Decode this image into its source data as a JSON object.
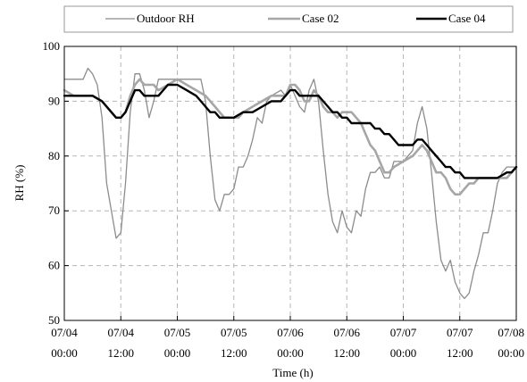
{
  "chart_data": {
    "type": "line",
    "xlabel": "Time (h)",
    "ylabel": "RH (%)",
    "xlim": [
      0,
      96
    ],
    "ylim": [
      50,
      100
    ],
    "yticks": [
      50,
      60,
      70,
      80,
      90,
      100
    ],
    "xticks": [
      {
        "x": 0,
        "date": "07/04",
        "time": "00:00"
      },
      {
        "x": 12,
        "date": "07/04",
        "time": "12:00"
      },
      {
        "x": 24,
        "date": "07/05",
        "time": "00:00"
      },
      {
        "x": 36,
        "date": "07/05",
        "time": "12:00"
      },
      {
        "x": 48,
        "date": "07/06",
        "time": "00:00"
      },
      {
        "x": 60,
        "date": "07/06",
        "time": "12:00"
      },
      {
        "x": 72,
        "date": "07/07",
        "time": "00:00"
      },
      {
        "x": 84,
        "date": "07/07",
        "time": "12:00"
      },
      {
        "x": 96,
        "date": "07/08",
        "time": "00:00"
      }
    ],
    "grid": true,
    "legend": "top",
    "series": [
      {
        "name": "Outdoor RH",
        "color": "#8c8c8c",
        "style": "thin",
        "points": [
          [
            0,
            94
          ],
          [
            2,
            94
          ],
          [
            4,
            94
          ],
          [
            5,
            96
          ],
          [
            6,
            95
          ],
          [
            7,
            93
          ],
          [
            8,
            87
          ],
          [
            9,
            75
          ],
          [
            10,
            70
          ],
          [
            11,
            65
          ],
          [
            12,
            66
          ],
          [
            13,
            75
          ],
          [
            14,
            88
          ],
          [
            15,
            95
          ],
          [
            16,
            95
          ],
          [
            17,
            92
          ],
          [
            18,
            87
          ],
          [
            19,
            90
          ],
          [
            20,
            94
          ],
          [
            22,
            94
          ],
          [
            24,
            94
          ],
          [
            26,
            94
          ],
          [
            28,
            94
          ],
          [
            29,
            94
          ],
          [
            30,
            90
          ],
          [
            31,
            80
          ],
          [
            32,
            72
          ],
          [
            33,
            70
          ],
          [
            34,
            73
          ],
          [
            35,
            73
          ],
          [
            36,
            74
          ],
          [
            37,
            78
          ],
          [
            38,
            78
          ],
          [
            39,
            80
          ],
          [
            40,
            83
          ],
          [
            41,
            87
          ],
          [
            42,
            86
          ],
          [
            43,
            90
          ],
          [
            44,
            91
          ],
          [
            46,
            92
          ],
          [
            47,
            91
          ],
          [
            48,
            93
          ],
          [
            49,
            91
          ],
          [
            50,
            89
          ],
          [
            51,
            88
          ],
          [
            52,
            92
          ],
          [
            53,
            94
          ],
          [
            54,
            90
          ],
          [
            55,
            81
          ],
          [
            56,
            73
          ],
          [
            57,
            68
          ],
          [
            58,
            66
          ],
          [
            59,
            70
          ],
          [
            60,
            67
          ],
          [
            61,
            66
          ],
          [
            62,
            70
          ],
          [
            63,
            69
          ],
          [
            64,
            74
          ],
          [
            65,
            77
          ],
          [
            66,
            77
          ],
          [
            67,
            78
          ],
          [
            68,
            76
          ],
          [
            69,
            76
          ],
          [
            70,
            79
          ],
          [
            72,
            79
          ],
          [
            74,
            81
          ],
          [
            75,
            86
          ],
          [
            76,
            89
          ],
          [
            77,
            85
          ],
          [
            78,
            77
          ],
          [
            79,
            68
          ],
          [
            80,
            61
          ],
          [
            81,
            59
          ],
          [
            82,
            61
          ],
          [
            83,
            57
          ],
          [
            84,
            55
          ],
          [
            85,
            54
          ],
          [
            86,
            55
          ],
          [
            87,
            59
          ],
          [
            88,
            62
          ],
          [
            89,
            66
          ],
          [
            90,
            66
          ],
          [
            91,
            70
          ],
          [
            92,
            75
          ],
          [
            93,
            77
          ],
          [
            94,
            78
          ],
          [
            95,
            78
          ],
          [
            96,
            78
          ]
        ]
      },
      {
        "name": "Case 02",
        "color": "#a6a6a6",
        "style": "medium",
        "points": [
          [
            0,
            92
          ],
          [
            2,
            91
          ],
          [
            4,
            91
          ],
          [
            6,
            91
          ],
          [
            8,
            90
          ],
          [
            9,
            89
          ],
          [
            10,
            88
          ],
          [
            11,
            87
          ],
          [
            12,
            87
          ],
          [
            13,
            88
          ],
          [
            14,
            91
          ],
          [
            15,
            93
          ],
          [
            16,
            94
          ],
          [
            17,
            93
          ],
          [
            18,
            93
          ],
          [
            19,
            93
          ],
          [
            20,
            92
          ],
          [
            22,
            93
          ],
          [
            24,
            94
          ],
          [
            26,
            93
          ],
          [
            28,
            92
          ],
          [
            30,
            91
          ],
          [
            32,
            89
          ],
          [
            33,
            88
          ],
          [
            34,
            87
          ],
          [
            35,
            87
          ],
          [
            36,
            87
          ],
          [
            37,
            87
          ],
          [
            38,
            88
          ],
          [
            40,
            89
          ],
          [
            42,
            90
          ],
          [
            44,
            91
          ],
          [
            46,
            91
          ],
          [
            47,
            91
          ],
          [
            48,
            93
          ],
          [
            49,
            93
          ],
          [
            50,
            92
          ],
          [
            51,
            90
          ],
          [
            52,
            90
          ],
          [
            53,
            92
          ],
          [
            54,
            91
          ],
          [
            55,
            89
          ],
          [
            56,
            88
          ],
          [
            57,
            88
          ],
          [
            58,
            87
          ],
          [
            59,
            88
          ],
          [
            60,
            88
          ],
          [
            61,
            88
          ],
          [
            62,
            87
          ],
          [
            63,
            86
          ],
          [
            64,
            84
          ],
          [
            65,
            82
          ],
          [
            66,
            81
          ],
          [
            67,
            79
          ],
          [
            68,
            77
          ],
          [
            69,
            77
          ],
          [
            70,
            78
          ],
          [
            72,
            79
          ],
          [
            74,
            80
          ],
          [
            75,
            81
          ],
          [
            76,
            82
          ],
          [
            77,
            81
          ],
          [
            78,
            79
          ],
          [
            79,
            77
          ],
          [
            80,
            77
          ],
          [
            81,
            76
          ],
          [
            82,
            74
          ],
          [
            83,
            73
          ],
          [
            84,
            73
          ],
          [
            85,
            74
          ],
          [
            86,
            75
          ],
          [
            87,
            75
          ],
          [
            88,
            76
          ],
          [
            90,
            76
          ],
          [
            92,
            76
          ],
          [
            94,
            76
          ],
          [
            95,
            77
          ],
          [
            96,
            78
          ]
        ]
      },
      {
        "name": "Case 04",
        "color": "#000000",
        "style": "thick",
        "points": [
          [
            0,
            91
          ],
          [
            2,
            91
          ],
          [
            4,
            91
          ],
          [
            6,
            91
          ],
          [
            8,
            90
          ],
          [
            9,
            89
          ],
          [
            10,
            88
          ],
          [
            11,
            87
          ],
          [
            12,
            87
          ],
          [
            13,
            88
          ],
          [
            14,
            90
          ],
          [
            15,
            92
          ],
          [
            16,
            92
          ],
          [
            17,
            91
          ],
          [
            18,
            91
          ],
          [
            19,
            91
          ],
          [
            20,
            91
          ],
          [
            21,
            92
          ],
          [
            22,
            93
          ],
          [
            24,
            93
          ],
          [
            26,
            92
          ],
          [
            28,
            91
          ],
          [
            29,
            90
          ],
          [
            30,
            89
          ],
          [
            31,
            88
          ],
          [
            32,
            88
          ],
          [
            33,
            87
          ],
          [
            34,
            87
          ],
          [
            35,
            87
          ],
          [
            36,
            87
          ],
          [
            38,
            88
          ],
          [
            40,
            88
          ],
          [
            42,
            89
          ],
          [
            44,
            90
          ],
          [
            46,
            90
          ],
          [
            47,
            91
          ],
          [
            48,
            92
          ],
          [
            49,
            92
          ],
          [
            50,
            91
          ],
          [
            51,
            91
          ],
          [
            52,
            91
          ],
          [
            53,
            91
          ],
          [
            54,
            91
          ],
          [
            55,
            90
          ],
          [
            56,
            89
          ],
          [
            57,
            88
          ],
          [
            58,
            88
          ],
          [
            59,
            87
          ],
          [
            60,
            87
          ],
          [
            61,
            86
          ],
          [
            62,
            86
          ],
          [
            63,
            86
          ],
          [
            64,
            86
          ],
          [
            65,
            86
          ],
          [
            66,
            85
          ],
          [
            67,
            85
          ],
          [
            68,
            84
          ],
          [
            69,
            84
          ],
          [
            70,
            83
          ],
          [
            71,
            82
          ],
          [
            72,
            82
          ],
          [
            73,
            82
          ],
          [
            74,
            82
          ],
          [
            75,
            83
          ],
          [
            76,
            83
          ],
          [
            77,
            82
          ],
          [
            78,
            81
          ],
          [
            79,
            80
          ],
          [
            80,
            79
          ],
          [
            81,
            78
          ],
          [
            82,
            78
          ],
          [
            83,
            77
          ],
          [
            84,
            77
          ],
          [
            85,
            76
          ],
          [
            86,
            76
          ],
          [
            87,
            76
          ],
          [
            88,
            76
          ],
          [
            90,
            76
          ],
          [
            92,
            76
          ],
          [
            94,
            77
          ],
          [
            95,
            77
          ],
          [
            96,
            78
          ]
        ]
      }
    ]
  }
}
